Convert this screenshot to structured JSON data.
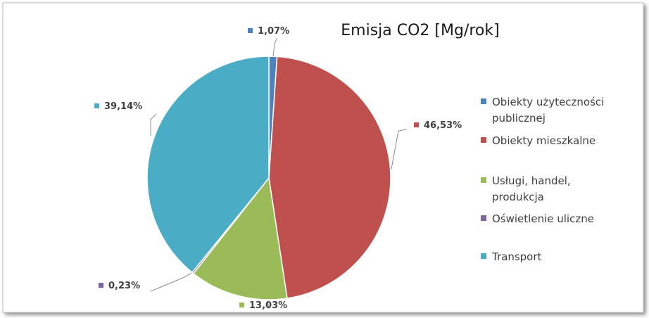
{
  "chart_data": {
    "type": "pie",
    "title": "Emisja CO2 [Mg/rok]",
    "series": [
      {
        "name": "Obiekty użyteczności publicznej",
        "value": 1.07,
        "label": "1,07%",
        "color": "#4F81BD",
        "legend_lines": [
          "Obiekty użyteczności",
          "publicznej"
        ]
      },
      {
        "name": "Obiekty mieszkalne",
        "value": 46.53,
        "label": "46,53%",
        "color": "#C0504D",
        "legend_lines": [
          "Obiekty mieszkalne"
        ]
      },
      {
        "name": "Usługi, handel, produkcja",
        "value": 13.03,
        "label": "13,03%",
        "color": "#9BBB59",
        "legend_lines": [
          "Usługi, handel,",
          "produkcja"
        ]
      },
      {
        "name": "Oświetlenie uliczne",
        "value": 0.23,
        "label": "0,23%",
        "color": "#8064A2",
        "legend_lines": [
          "Oświetlenie uliczne"
        ]
      },
      {
        "name": "Transport",
        "value": 39.14,
        "label": "39,14%",
        "color": "#4BACC6",
        "legend_lines": [
          "Transport"
        ]
      }
    ],
    "legend_position": "right",
    "start_angle": "top, clockwise"
  }
}
